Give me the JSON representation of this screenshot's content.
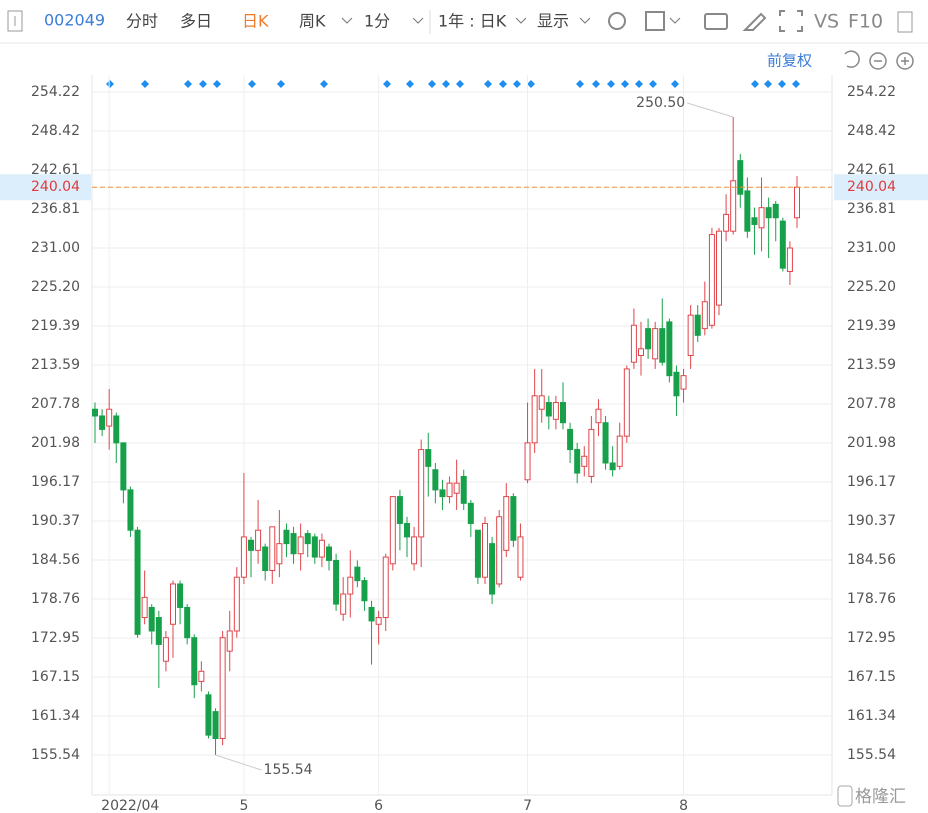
{
  "toolbar": {
    "code": "002049",
    "tabs": [
      "分时",
      "多日",
      "日K",
      "周K",
      "1分",
      "1年 : 日K",
      "显示"
    ],
    "vs": "VS",
    "f10": "F10"
  },
  "adjust": "前复权",
  "watermark": "格隆汇",
  "chart_data": {
    "type": "candlestick",
    "categories": [
      null,
      null,
      "2022/04",
      null,
      null,
      null,
      null,
      null,
      null,
      null,
      null,
      null,
      null,
      null,
      null,
      null,
      null,
      null,
      null,
      null,
      null,
      "5",
      null,
      null,
      null,
      null,
      null,
      null,
      null,
      null,
      null,
      null,
      null,
      null,
      null,
      null,
      null,
      null,
      null,
      null,
      "6",
      null,
      null,
      null,
      null,
      null,
      null,
      null,
      null,
      null,
      null,
      null,
      null,
      null,
      null,
      null,
      null,
      null,
      null,
      null,
      null,
      "7",
      null,
      null,
      null,
      null,
      null,
      null,
      null,
      null,
      null,
      null,
      null,
      null,
      null,
      null,
      null,
      null,
      null,
      null,
      null,
      null,
      null,
      "8",
      null,
      null,
      null,
      null,
      null,
      null,
      null,
      null,
      null,
      null,
      null,
      null,
      null,
      null,
      null,
      null
    ],
    "open": [
      207,
      206,
      204.5,
      206,
      202,
      195,
      189,
      176,
      177.5,
      176,
      169.5,
      175,
      181,
      177.5,
      173,
      166.5,
      164.5,
      162,
      158,
      171,
      174,
      182,
      187.5,
      186,
      186.5,
      183,
      184,
      189,
      188.5,
      185.5,
      188.5,
      188,
      185,
      186.5,
      184.5,
      176.5,
      179.5,
      183.5,
      181.5,
      177.5,
      175,
      176,
      184,
      194,
      190,
      184,
      188,
      201,
      198,
      195,
      194,
      194.5,
      197,
      193,
      189,
      182,
      187,
      181,
      186,
      194,
      182,
      196.5,
      202,
      207,
      208,
      205.5,
      208,
      204,
      201,
      198.5,
      197,
      205,
      205,
      199,
      198.5,
      203,
      214,
      215,
      219,
      214.5,
      219,
      220,
      212.5,
      210,
      215,
      221,
      219,
      219.5,
      222.5,
      233.5,
      233.5,
      244,
      239.5,
      235.5,
      234,
      237,
      237.5,
      235,
      227.5,
      235.5
    ],
    "high": [
      208,
      207,
      210,
      206.5,
      202,
      195.5,
      189.5,
      183,
      178,
      177,
      174,
      181.5,
      181.5,
      178,
      173.5,
      169.5,
      165,
      162.5,
      174,
      177,
      183.5,
      197.5,
      188,
      193.5,
      187,
      189.5,
      192,
      190,
      189.5,
      190,
      189,
      188.5,
      188.5,
      187,
      185.5,
      182,
      186,
      184.5,
      182,
      178.5,
      177,
      185.5,
      194,
      195,
      191,
      189.5,
      202.5,
      203.5,
      199,
      196.5,
      197,
      199.5,
      198,
      193.5,
      189,
      191,
      188,
      192,
      196,
      194.5,
      190,
      208,
      213,
      213,
      209,
      209,
      211,
      205,
      202,
      201.5,
      206,
      208.5,
      206,
      201.5,
      205,
      213.5,
      222,
      220,
      220.5,
      220,
      223.5,
      220.5,
      213.5,
      213,
      222.5,
      222.5,
      226,
      234,
      234,
      239,
      250.5,
      245,
      241.5,
      237,
      241.5,
      238.5,
      238,
      235.5,
      232,
      241.7
    ],
    "low": [
      202,
      203,
      201,
      199,
      193,
      188,
      173,
      175,
      172,
      165.5,
      168,
      170,
      175,
      172,
      164,
      165,
      158,
      155.54,
      157,
      168,
      173,
      181,
      182,
      184,
      181.5,
      181,
      182,
      185,
      184,
      183,
      185,
      184,
      183.5,
      183,
      177,
      175.5,
      176,
      180.5,
      177,
      169,
      172,
      174,
      183,
      186,
      185,
      183,
      183.5,
      194,
      193,
      192,
      193,
      192,
      192,
      188,
      181,
      181,
      178,
      180.5,
      185,
      186.5,
      181.5,
      196,
      200.5,
      205,
      204,
      204,
      204,
      199,
      196,
      197,
      196,
      203,
      198,
      197,
      198,
      202,
      213,
      212,
      214.5,
      213,
      213.5,
      211,
      206,
      208,
      213,
      217,
      218,
      219,
      221,
      232,
      233,
      237,
      232.5,
      230,
      230.5,
      229.5,
      232,
      227.5,
      225.5,
      234
    ],
    "close": [
      206,
      204,
      207,
      202,
      195,
      189,
      173.5,
      179,
      174,
      172,
      173,
      181,
      177.5,
      173,
      166,
      168,
      158.5,
      158,
      173,
      174,
      182,
      188,
      186,
      189,
      183,
      189.5,
      187,
      187,
      185.5,
      188,
      187,
      185,
      187.5,
      184.5,
      178,
      179.5,
      182,
      181.5,
      178.5,
      175.5,
      176,
      185,
      194,
      190,
      188,
      188,
      201,
      198.5,
      195,
      194,
      196,
      196,
      193,
      190,
      182,
      190,
      179.5,
      191,
      194,
      187.5,
      188,
      202,
      209,
      209,
      206,
      208,
      205,
      201,
      197.5,
      200,
      204,
      207,
      199,
      198,
      203,
      213,
      219.5,
      216,
      216,
      219,
      214,
      212,
      209,
      212,
      221,
      218,
      223,
      233,
      233.5,
      236,
      241,
      239,
      233.5,
      234.5,
      237,
      235.5,
      235.5,
      228,
      231,
      240.04
    ],
    "up_color": "#e0454b",
    "down_color": "#17a04a",
    "ylim": [
      149.59,
      261.21
    ],
    "yticks": [
      254.22,
      248.42,
      242.61,
      236.81,
      {
        "value": 231,
        "label": "231.00"
      },
      {
        "value": 225.2,
        "label": "225.20"
      },
      219.39,
      213.59,
      207.78,
      201.98,
      196.17,
      190.37,
      184.56,
      178.76,
      172.95,
      167.15,
      161.34,
      155.54
    ],
    "last_price": {
      "value": 240.04,
      "label": "240.04"
    },
    "annotations": [
      {
        "value": 250.5,
        "label": "250.50"
      },
      {
        "value": 155.54,
        "label": "155.54"
      }
    ]
  }
}
